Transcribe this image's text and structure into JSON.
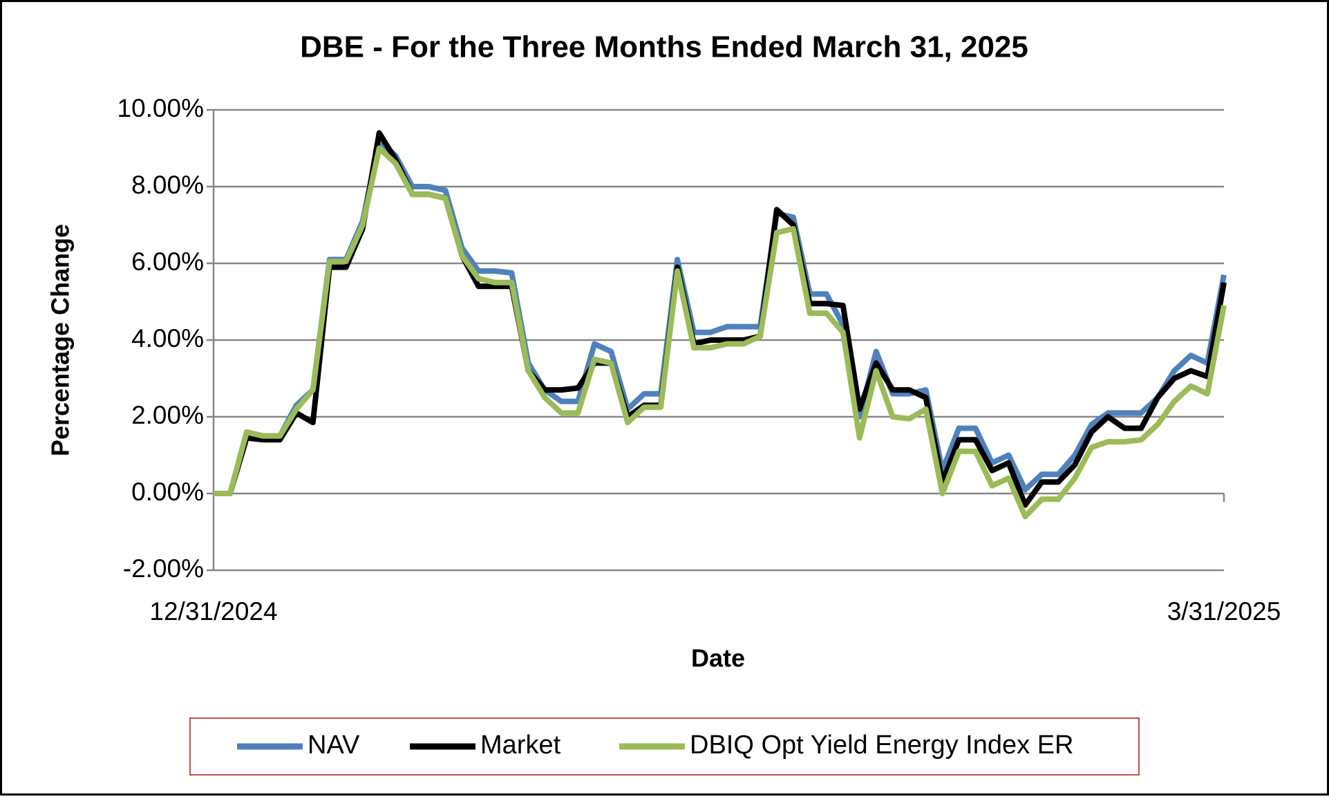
{
  "chart_data": {
    "type": "line",
    "title": "DBE - For the Three Months Ended March 31, 2025",
    "x_label": "Date",
    "y_label": "Percentage Change",
    "categories": [
      "12/31/2024",
      null,
      null,
      null,
      null,
      null,
      null,
      null,
      null,
      null,
      null,
      null,
      null,
      null,
      null,
      null,
      null,
      null,
      null,
      null,
      null,
      null,
      null,
      null,
      null,
      null,
      null,
      null,
      null,
      null,
      null,
      null,
      null,
      null,
      null,
      null,
      null,
      null,
      null,
      null,
      null,
      null,
      null,
      null,
      null,
      null,
      null,
      null,
      null,
      null,
      null,
      null,
      null,
      null,
      null,
      null,
      null,
      null,
      null,
      null,
      null,
      "3/31/2025"
    ],
    "series": [
      {
        "name": "NAV",
        "color": "#4f81bd",
        "values": [
          0,
          0,
          1.6,
          1.5,
          1.5,
          2.3,
          2.7,
          6.1,
          6.1,
          7.1,
          9.2,
          8.8,
          8.0,
          8.0,
          7.9,
          6.4,
          5.8,
          5.8,
          5.75,
          3.4,
          2.7,
          2.4,
          2.4,
          3.9,
          3.7,
          2.2,
          2.6,
          2.6,
          6.1,
          4.2,
          4.2,
          4.35,
          4.35,
          4.35,
          7.3,
          7.2,
          5.2,
          5.2,
          4.4,
          2.0,
          3.7,
          2.6,
          2.6,
          2.7,
          0.6,
          1.7,
          1.7,
          0.8,
          1.0,
          0.1,
          0.5,
          0.5,
          1.0,
          1.8,
          2.1,
          2.1,
          2.1,
          2.5,
          3.2,
          3.6,
          3.4,
          5.7
        ]
      },
      {
        "name": "Market",
        "color": "#000000",
        "values": [
          0,
          0,
          1.45,
          1.4,
          1.4,
          2.1,
          1.85,
          5.9,
          5.9,
          6.9,
          9.4,
          8.7,
          7.8,
          7.8,
          7.7,
          6.2,
          5.4,
          5.4,
          5.4,
          3.2,
          2.7,
          2.7,
          2.75,
          3.4,
          3.4,
          2.0,
          2.3,
          2.3,
          5.9,
          3.9,
          4.0,
          4.0,
          4.0,
          4.1,
          7.4,
          7.0,
          4.95,
          4.95,
          4.9,
          2.2,
          3.4,
          2.7,
          2.7,
          2.5,
          0.3,
          1.4,
          1.4,
          0.6,
          0.8,
          -0.3,
          0.3,
          0.3,
          0.75,
          1.6,
          2.0,
          1.7,
          1.7,
          2.5,
          3.0,
          3.2,
          3.05,
          5.5
        ]
      },
      {
        "name": "DBIQ Opt Yield Energy Index ER",
        "color": "#9bbb59",
        "values": [
          0,
          0,
          1.6,
          1.5,
          1.5,
          2.2,
          2.7,
          6.05,
          6.05,
          7.0,
          9.0,
          8.6,
          7.8,
          7.8,
          7.7,
          6.2,
          5.6,
          5.5,
          5.5,
          3.2,
          2.5,
          2.1,
          2.1,
          3.5,
          3.4,
          1.85,
          2.25,
          2.25,
          5.8,
          3.8,
          3.8,
          3.9,
          3.9,
          4.1,
          6.8,
          6.9,
          4.7,
          4.7,
          4.2,
          1.45,
          3.2,
          2.0,
          1.95,
          2.2,
          0.0,
          1.1,
          1.1,
          0.2,
          0.4,
          -0.6,
          -0.15,
          -0.15,
          0.4,
          1.2,
          1.35,
          1.35,
          1.4,
          1.8,
          2.4,
          2.8,
          2.6,
          4.9
        ]
      }
    ],
    "ylim": [
      -2,
      10
    ],
    "yticks": [
      {
        "value": -2,
        "label": "-2.00%"
      },
      {
        "value": 0,
        "label": "0.00%"
      },
      {
        "value": 2,
        "label": "2.00%"
      },
      {
        "value": 4,
        "label": "4.00%"
      },
      {
        "value": 6,
        "label": "6.00%"
      },
      {
        "value": 8,
        "label": "8.00%"
      },
      {
        "value": 10,
        "label": "10.00%"
      }
    ],
    "grid": true,
    "legend": "bottom"
  }
}
